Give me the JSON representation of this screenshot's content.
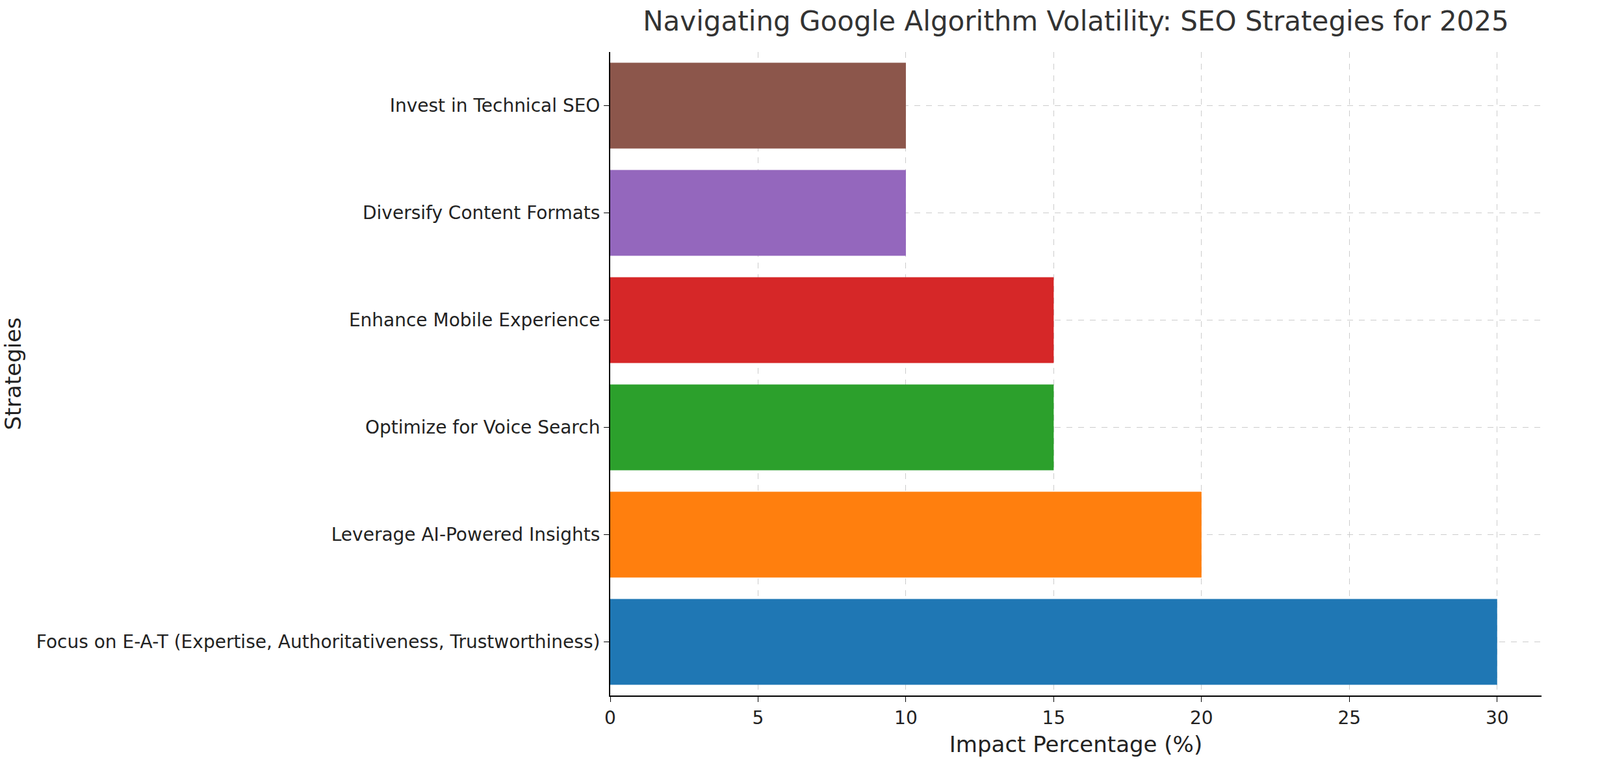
{
  "chart_data": {
    "type": "bar",
    "orientation": "horizontal",
    "title": "Navigating Google Algorithm Volatility: SEO Strategies for 2025",
    "x_label": "Impact Percentage (%)",
    "y_label": "Strategies",
    "categories": [
      "Focus on E-A-T (Expertise, Authoritativeness, Trustworthiness)",
      "Leverage AI-Powered Insights",
      "Optimize for Voice Search",
      "Enhance Mobile Experience",
      "Diversify Content Formats",
      "Invest in Technical SEO"
    ],
    "values": [
      30,
      20,
      15,
      15,
      10,
      10
    ],
    "colors": [
      "#1f77b4",
      "#ff7f0e",
      "#2ca02c",
      "#d62728",
      "#9467bd",
      "#8c564b"
    ],
    "xlim": [
      0,
      31.5
    ],
    "xticks": [
      0,
      5,
      10,
      15,
      20,
      25,
      30
    ],
    "grid": true
  }
}
